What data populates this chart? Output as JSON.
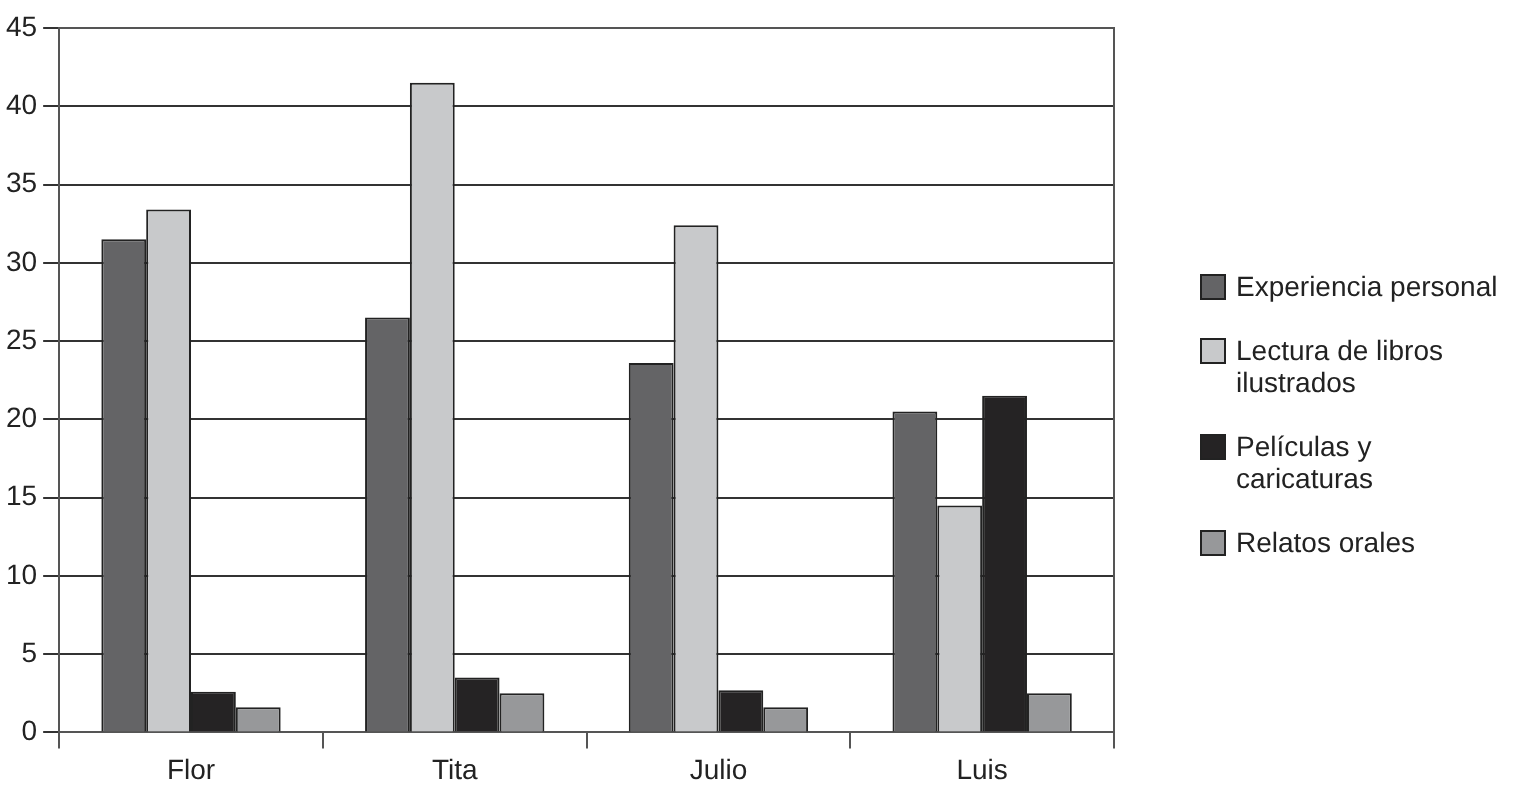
{
  "chart_data": {
    "type": "bar",
    "categories": [
      "Flor",
      "Tita",
      "Julio",
      "Luis"
    ],
    "series": [
      {
        "name": "Experiencia personal",
        "color": "#646466",
        "values": [
          31.5,
          26.5,
          23.6,
          20.5
        ]
      },
      {
        "name": "Lectura de libros ilustrados",
        "color": "#c8c9cb",
        "values": [
          33.4,
          41.5,
          32.4,
          14.5
        ]
      },
      {
        "name": "Películas y caricaturas",
        "color": "#252324",
        "values": [
          2.6,
          3.5,
          2.7,
          21.5
        ]
      },
      {
        "name": "Relatos orales",
        "color": "#97989a",
        "values": [
          1.6,
          2.5,
          1.6,
          2.5
        ]
      }
    ],
    "ylim": [
      0,
      45
    ],
    "yticks": [
      0,
      5,
      10,
      15,
      20,
      25,
      30,
      35,
      40,
      45
    ],
    "grid": "y",
    "legend": "right"
  }
}
